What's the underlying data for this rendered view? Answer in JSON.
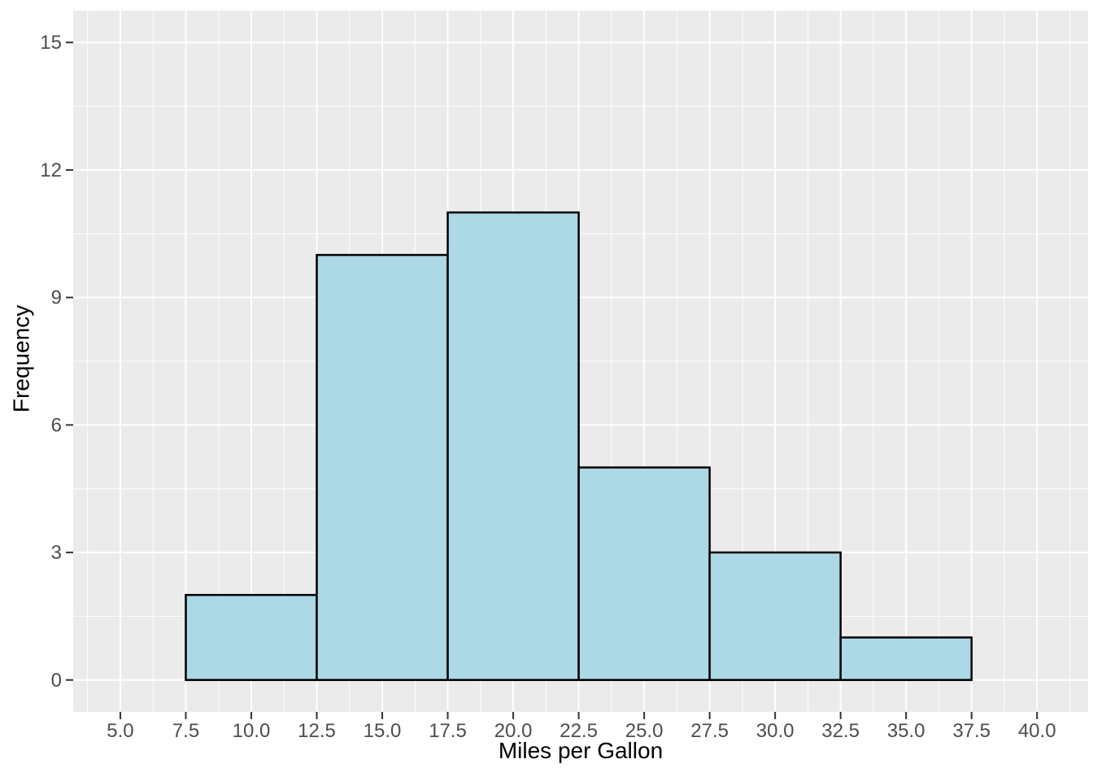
{
  "chart_data": {
    "type": "bar",
    "subtype": "histogram",
    "title": "",
    "xlabel": "Miles per Gallon",
    "ylabel": "Frequency",
    "bin_width": 5,
    "bin_edges": [
      7.5,
      12.5,
      17.5,
      22.5,
      27.5,
      32.5,
      37.5
    ],
    "counts": [
      2,
      10,
      11,
      5,
      3,
      1
    ],
    "x_ticks": [
      5.0,
      7.5,
      10.0,
      12.5,
      15.0,
      17.5,
      20.0,
      22.5,
      25.0,
      27.5,
      30.0,
      32.5,
      35.0,
      37.5,
      40.0
    ],
    "x_tick_labels": [
      "5.0",
      "7.5",
      "10.0",
      "12.5",
      "15.0",
      "17.5",
      "20.0",
      "22.5",
      "25.0",
      "27.5",
      "30.0",
      "32.5",
      "35.0",
      "37.5",
      "40.0"
    ],
    "y_ticks": [
      0,
      3,
      6,
      9,
      12,
      15
    ],
    "y_tick_labels": [
      "0",
      "3",
      "6",
      "9",
      "12",
      "15"
    ],
    "x_minor_ticks": [
      3.75,
      6.25,
      8.75,
      11.25,
      13.75,
      16.25,
      18.75,
      21.25,
      23.75,
      26.25,
      28.75,
      31.25,
      33.75,
      36.25,
      38.75,
      41.25
    ],
    "y_minor_ticks": [
      1.5,
      4.5,
      7.5,
      10.5,
      13.5
    ],
    "xlim": [
      3.2,
      41.95
    ],
    "ylim": [
      -0.75,
      15.75
    ],
    "grid": true,
    "legend": "none",
    "style": {
      "bar_fill": "#ADD8E6",
      "bar_stroke": "#000000",
      "panel_bg": "#EBEBEB",
      "grid_color": "#FFFFFF",
      "tick_label_color": "#4D4D4D",
      "axis_title_color": "#000000",
      "tick_mark_color": "#333333",
      "outer_bg": "#FFFFFF"
    }
  }
}
